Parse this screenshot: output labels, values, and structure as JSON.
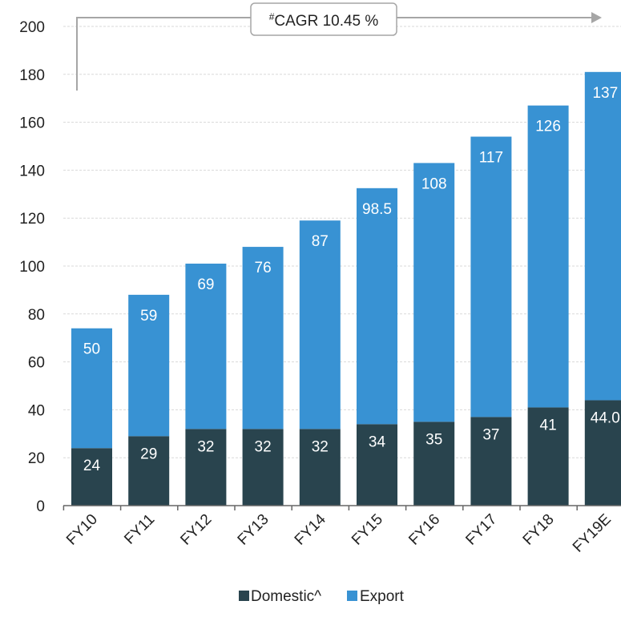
{
  "colors": {
    "domestic": "#29444e",
    "export": "#3892d3",
    "axis": "#666666",
    "grid": "#d9d9d9",
    "cagr_line": "#a6a6a6"
  },
  "cagr": {
    "superscript": "#",
    "label": "CAGR 10.45 %"
  },
  "chart_data": {
    "type": "bar",
    "stacked": true,
    "categories": [
      "FY10",
      "FY11",
      "FY12",
      "FY13",
      "FY14",
      "FY15",
      "FY16",
      "FY17",
      "FY18",
      "FY19E"
    ],
    "series": [
      {
        "name": "Domestic^",
        "values": [
          24,
          29,
          32,
          32,
          32,
          34,
          35,
          37,
          41,
          44.0
        ],
        "labels": [
          "24",
          "29",
          "32",
          "32",
          "32",
          "34",
          "35",
          "37",
          "41",
          "44.0"
        ]
      },
      {
        "name": "Export",
        "values": [
          50,
          59,
          69,
          76,
          87,
          98.5,
          108,
          117,
          126,
          137
        ],
        "labels": [
          "50",
          "59",
          "69",
          "76",
          "87",
          "98.5",
          "108",
          "117",
          "126",
          "137"
        ]
      }
    ],
    "ylim": [
      0,
      200
    ],
    "yticks": [
      0,
      20,
      40,
      60,
      80,
      100,
      120,
      140,
      160,
      180,
      200
    ],
    "grid": true,
    "legend": "bottom-center",
    "title": "",
    "xlabel": "",
    "ylabel": ""
  }
}
